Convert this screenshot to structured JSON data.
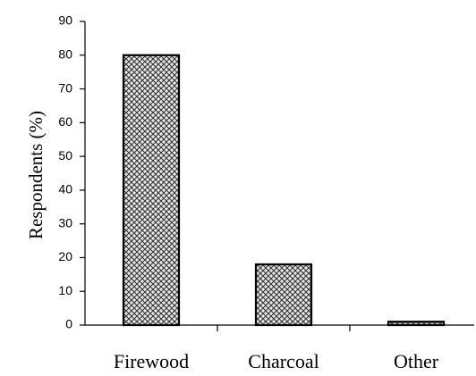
{
  "chart_data": {
    "type": "bar",
    "y_label": "Respondents (%)",
    "categories": [
      "Firewood",
      "Charcoal",
      "Other"
    ],
    "values": [
      80,
      18,
      1
    ],
    "ylim": [
      0,
      90
    ],
    "yticks": [
      0,
      10,
      20,
      30,
      40,
      50,
      60,
      70,
      80,
      90
    ],
    "grid": false
  }
}
